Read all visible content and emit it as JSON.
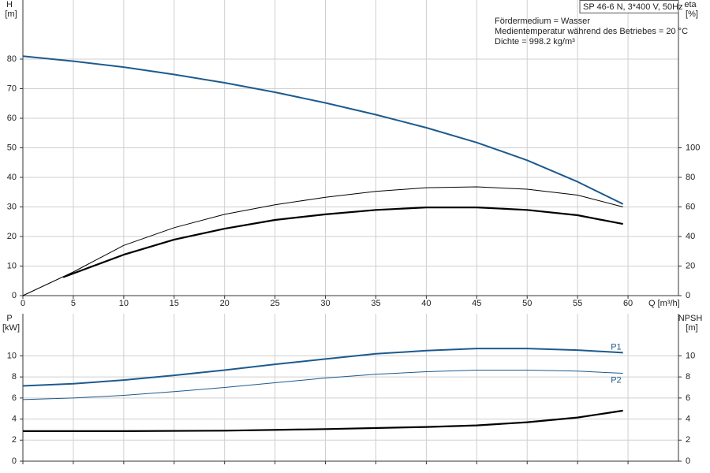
{
  "chart_data": [
    {
      "type": "line",
      "box_label": "SP 46-6 N, 3*400 V, 50Hz",
      "annotations": [
        "Fördermedium = Wasser",
        "Medientemperatur während des Betriebes = 20 °C",
        "Dichte = 998.2 kg/m³"
      ],
      "xlabel": "Q [m³/h]",
      "ylabel": "H",
      "yunit": "[m]",
      "y2label": "eta",
      "y2unit": "[%]",
      "xlim": [
        0,
        65
      ],
      "xticks": [
        0,
        5,
        10,
        15,
        20,
        25,
        30,
        35,
        40,
        45,
        50,
        55,
        60
      ],
      "xtick_labels": true,
      "ylim": [
        0,
        100
      ],
      "yticks": [
        0,
        10,
        20,
        30,
        40,
        50,
        60,
        70,
        80
      ],
      "y2lim": [
        0,
        200
      ],
      "y2ticks": [
        0,
        20,
        40,
        60,
        80,
        100
      ],
      "grid": true,
      "series": [
        {
          "color": "#1d5a8e",
          "width": 2,
          "x": [
            0,
            5,
            10,
            15,
            20,
            25,
            30,
            35,
            40,
            45,
            50,
            55,
            59.5
          ],
          "values": [
            81,
            79.3,
            77.3,
            74.8,
            72,
            68.8,
            65.2,
            61.2,
            56.8,
            51.8,
            45.8,
            38.5,
            31
          ]
        },
        {
          "color": "#000000",
          "width": 1,
          "axis": "y2",
          "x": [
            0,
            5,
            10,
            15,
            20,
            25,
            30,
            35,
            40,
            45,
            50,
            55,
            59.5
          ],
          "values": [
            0,
            16,
            34,
            46,
            55,
            61.5,
            66.5,
            70.5,
            73,
            73.6,
            72,
            68,
            60
          ]
        },
        {
          "color": "#000000",
          "width": 2.2,
          "axis": "y2",
          "x": [
            4,
            10,
            15,
            20,
            25,
            30,
            35,
            40,
            45,
            50,
            55,
            59.5
          ],
          "values": [
            12.5,
            27.7,
            37.9,
            45.3,
            51.2,
            55,
            58,
            59.7,
            59.7,
            58,
            54.4,
            48.5
          ]
        }
      ]
    },
    {
      "type": "line",
      "ylabel": "P",
      "yunit": "[kW]",
      "y2label": "NPSH",
      "y2unit": "[m]",
      "xlim": [
        0,
        65
      ],
      "xticks": [
        0,
        5,
        10,
        15,
        20,
        25,
        30,
        35,
        40,
        45,
        50,
        55,
        60
      ],
      "xtick_labels": false,
      "ylim": [
        0,
        14
      ],
      "yticks": [
        0,
        2,
        4,
        6,
        8,
        10
      ],
      "y2lim": [
        0,
        14
      ],
      "y2ticks": [
        0,
        2,
        4,
        6,
        8,
        10
      ],
      "grid": true,
      "series": [
        {
          "name": "P1",
          "color": "#1d5a8e",
          "width": 2,
          "x": [
            0,
            5,
            10,
            15,
            20,
            25,
            30,
            35,
            40,
            45,
            50,
            55,
            59.5
          ],
          "values": [
            7.15,
            7.35,
            7.7,
            8.15,
            8.65,
            9.2,
            9.7,
            10.2,
            10.5,
            10.7,
            10.7,
            10.55,
            10.3
          ]
        },
        {
          "name": "P2",
          "color": "#1d5a8e",
          "width": 1,
          "x": [
            0,
            5,
            10,
            15,
            20,
            25,
            30,
            35,
            40,
            45,
            50,
            55,
            59.5
          ],
          "values": [
            5.85,
            6.0,
            6.25,
            6.6,
            7.0,
            7.45,
            7.9,
            8.25,
            8.5,
            8.65,
            8.65,
            8.55,
            8.35
          ]
        },
        {
          "color": "#000000",
          "width": 2.2,
          "axis": "y2",
          "x": [
            0,
            4.2,
            10,
            20,
            30,
            40,
            45,
            50,
            55,
            59.5
          ],
          "values": [
            2.85,
            2.85,
            2.85,
            2.9,
            3.05,
            3.25,
            3.4,
            3.7,
            4.15,
            4.8
          ]
        }
      ]
    }
  ]
}
